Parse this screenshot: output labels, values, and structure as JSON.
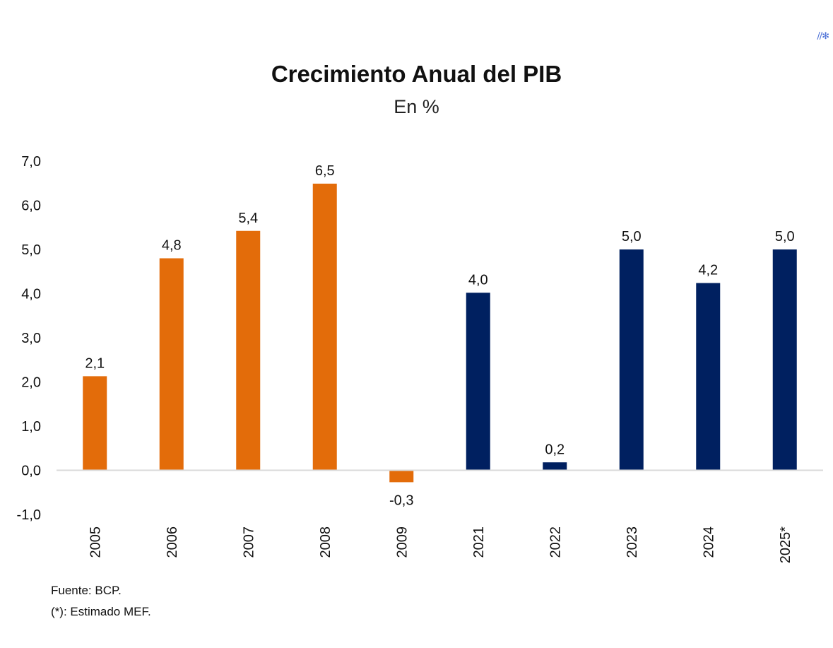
{
  "header": {
    "title": "Crecimiento Anual del PIB",
    "subtitle": "En %"
  },
  "footer": {
    "source": "Fuente: BCP.",
    "note": "(*): Estimado MEF."
  },
  "colors": {
    "historical": "#E36C0A",
    "recent": "#002060",
    "baseline": "#D9D9D9"
  },
  "chart_data": {
    "type": "bar",
    "title": "Crecimiento Anual del PIB",
    "subtitle": "En %",
    "xlabel": "",
    "ylabel": "",
    "ylim": [
      -1.0,
      7.0
    ],
    "yticks": [
      -1.0,
      0.0,
      1.0,
      2.0,
      3.0,
      4.0,
      5.0,
      6.0,
      7.0
    ],
    "ytick_labels": [
      "-1,0",
      "0,0",
      "1,0",
      "2,0",
      "3,0",
      "4,0",
      "5,0",
      "6,0",
      "7,0"
    ],
    "grid": false,
    "categories": [
      "2005",
      "2006",
      "2007",
      "2008",
      "2009",
      "2021",
      "2022",
      "2023",
      "2024",
      "2025*"
    ],
    "values": [
      2.13,
      4.8,
      5.42,
      6.49,
      -0.27,
      4.02,
      0.18,
      5.0,
      4.24,
      5.0
    ],
    "value_labels": [
      "2,1",
      "4,8",
      "5,4",
      "6,5",
      "-0,3",
      "4,0",
      "0,2",
      "5,0",
      "4,2",
      "5,0"
    ],
    "bar_groups": [
      "historical",
      "historical",
      "historical",
      "historical",
      "historical",
      "recent",
      "recent",
      "recent",
      "recent",
      "recent"
    ]
  }
}
